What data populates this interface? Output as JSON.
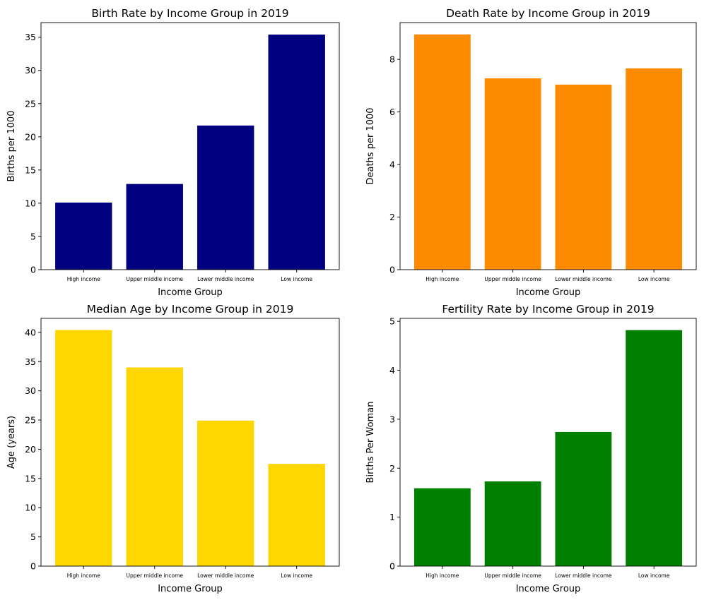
{
  "chart_data": [
    {
      "type": "bar",
      "title": "Birth Rate by Income Group in 2019",
      "xlabel": "Income Group",
      "ylabel": "Births per 1000",
      "categories": [
        "High income",
        "Upper middle income",
        "Lower middle income",
        "Low income"
      ],
      "values": [
        10.1,
        12.9,
        21.7,
        35.4
      ],
      "ylim": [
        0,
        37.2
      ],
      "yticks": [
        0,
        5,
        10,
        15,
        20,
        25,
        30,
        35
      ],
      "color": "#000080",
      "grid": false
    },
    {
      "type": "bar",
      "title": "Death Rate by Income Group in 2019",
      "xlabel": "Income Group",
      "ylabel": "Deaths per 1000",
      "categories": [
        "High income",
        "Upper middle income",
        "Lower middle income",
        "Low income"
      ],
      "values": [
        8.95,
        7.28,
        7.04,
        7.66
      ],
      "ylim": [
        0,
        9.4
      ],
      "yticks": [
        0,
        2,
        4,
        6,
        8
      ],
      "color": "#ff8c00",
      "grid": false
    },
    {
      "type": "bar",
      "title": "Median Age by Income Group in 2019",
      "xlabel": "Income Group",
      "ylabel": "Age (years)",
      "categories": [
        "High income",
        "Upper middle income",
        "Lower middle income",
        "Low income"
      ],
      "values": [
        40.4,
        34.0,
        24.9,
        17.5
      ],
      "ylim": [
        0,
        42.4
      ],
      "yticks": [
        0,
        5,
        10,
        15,
        20,
        25,
        30,
        35,
        40
      ],
      "color": "#ffd700",
      "grid": false
    },
    {
      "type": "bar",
      "title": "Fertility Rate by Income Group in 2019",
      "xlabel": "Income Group",
      "ylabel": "Births Per Woman",
      "categories": [
        "High income",
        "Upper middle income",
        "Lower middle income",
        "Low income"
      ],
      "values": [
        1.59,
        1.73,
        2.74,
        4.82
      ],
      "ylim": [
        0,
        5.06
      ],
      "yticks": [
        0,
        1,
        2,
        3,
        4,
        5
      ],
      "color": "#008000",
      "grid": false
    }
  ]
}
